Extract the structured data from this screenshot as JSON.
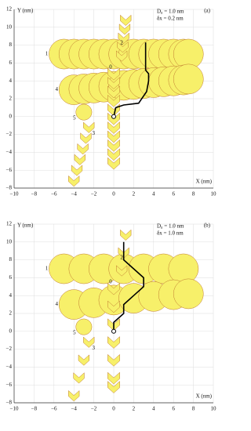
{
  "chart_data": [
    {
      "type": "line",
      "panel": "(a)",
      "annotations": [
        "D₀ = 1.0 nm",
        "δx = 0.2 nm"
      ],
      "xlabel": "X (nm)",
      "ylabel": "Y (nm)",
      "xlim": [
        -10,
        10
      ],
      "ylim": [
        -8,
        12
      ],
      "xticks": [
        {
          "value": -10,
          "label": "−10"
        },
        {
          "value": -8,
          "label": "−8"
        },
        {
          "value": -6,
          "label": "−6"
        },
        {
          "value": -4,
          "label": "−4"
        },
        {
          "value": -2,
          "label": "−2"
        },
        0,
        2,
        4,
        6,
        8,
        10
      ],
      "yticks": [
        {
          "value": -8,
          "label": "−8"
        },
        {
          "value": -6,
          "label": "−6"
        },
        {
          "value": -4,
          "label": "−4"
        },
        {
          "value": -2,
          "label": "−2"
        },
        0,
        2,
        4,
        6,
        8,
        10,
        12
      ],
      "grid": true,
      "branches": [
        {
          "label": "1",
          "shape": "circle",
          "size": 1.5,
          "color": "#f7f06a",
          "x": [
            -5,
            -4,
            -3,
            -2,
            -1,
            0,
            1,
            2,
            3,
            4,
            5,
            6,
            7,
            7.5
          ],
          "y": [
            7,
            7,
            7,
            7,
            7,
            7,
            7,
            7,
            7,
            7,
            7,
            7,
            7,
            7
          ]
        },
        {
          "label": "4",
          "shape": "circle",
          "size": 1.5,
          "color": "#f7f06a",
          "x": [
            -4,
            -3,
            -2,
            -1,
            0,
            1,
            2,
            3,
            4,
            5,
            6,
            7,
            7.5
          ],
          "y": [
            3,
            3.1,
            3.2,
            3.3,
            3.4,
            3.5,
            3.6,
            3.7,
            3.8,
            3.9,
            4,
            4.1,
            4.2
          ]
        },
        {
          "label": "5",
          "shape": "circle",
          "size": 0.8,
          "color": "#f7f06a",
          "x": [
            -3
          ],
          "y": [
            0.5
          ]
        },
        {
          "label": "3",
          "shape": "chevron",
          "size": 0.9,
          "color": "#f7f06a",
          "x": [
            -2.5,
            -2.8,
            -3.1,
            -3.4,
            -3.7,
            -4
          ],
          "y": [
            -1,
            -2.2,
            -3.4,
            -4.6,
            -5.8,
            -7
          ]
        },
        {
          "label": "2",
          "shape": "chevron",
          "size": 0.9,
          "color": "#f7f06a",
          "x": [
            0.8,
            0.9,
            1,
            1.1,
            1.2
          ],
          "y": [
            7,
            8,
            9,
            10,
            11
          ]
        },
        {
          "label": "0",
          "shape": "chevron",
          "size": 1,
          "color": "#f7f06a",
          "x": [
            0,
            0,
            0,
            0,
            0,
            0,
            0,
            0,
            0,
            0,
            0
          ],
          "y": [
            5,
            4,
            3,
            2,
            1,
            0,
            -1,
            -2,
            -3,
            -4,
            -5
          ]
        }
      ],
      "series": [
        {
          "color": "#000000",
          "x": [
            0,
            0.2,
            1,
            2.5,
            3.3,
            3.5,
            3.5,
            3.2,
            3.2
          ],
          "y": [
            0,
            1,
            1.3,
            1.5,
            2.8,
            4,
            4.8,
            5.2,
            8.3
          ]
        }
      ]
    },
    {
      "type": "line",
      "panel": "(b)",
      "annotations": [
        "D₀ = 1.0 nm",
        "δx = 1.0 nm"
      ],
      "xlabel": "X (nm)",
      "ylabel": "Y (nm)",
      "xlim": [
        -10,
        10
      ],
      "ylim": [
        -8,
        12
      ],
      "xticks": [
        {
          "value": -10,
          "label": "−10"
        },
        {
          "value": -8,
          "label": "−8"
        },
        {
          "value": -6,
          "label": "−6"
        },
        {
          "value": -4,
          "label": "−4"
        },
        {
          "value": -2,
          "label": "−2"
        },
        0,
        2,
        4,
        6,
        8,
        10
      ],
      "yticks": [
        {
          "value": -8,
          "label": "−8"
        },
        {
          "value": -6,
          "label": "−6"
        },
        {
          "value": -4,
          "label": "−4"
        },
        {
          "value": -2,
          "label": "−2"
        },
        0,
        2,
        4,
        6,
        8,
        10,
        12
      ],
      "grid": true,
      "branches": [
        {
          "label": "1",
          "shape": "circle",
          "size": 1.5,
          "color": "#f7f06a",
          "x": [
            -5,
            -3,
            -1,
            1,
            3,
            5,
            7
          ],
          "y": [
            7,
            7,
            7,
            7,
            7,
            7,
            7
          ]
        },
        {
          "label": "4",
          "shape": "circle",
          "size": 1.5,
          "color": "#f7f06a",
          "x": [
            -4,
            -2,
            0,
            2,
            4,
            6,
            7.5
          ],
          "y": [
            3,
            3.2,
            3.5,
            3.7,
            3.9,
            4.1,
            4.2
          ]
        },
        {
          "label": "5",
          "shape": "circle",
          "size": 0.8,
          "color": "#f7f06a",
          "x": [
            -3
          ],
          "y": [
            0.5
          ]
        },
        {
          "label": "3",
          "shape": "chevron",
          "size": 0.9,
          "color": "#f7f06a",
          "x": [
            -2.5,
            -3,
            -3.5,
            -4
          ],
          "y": [
            -1,
            -3,
            -5,
            -7
          ]
        },
        {
          "label": "2",
          "shape": "chevron",
          "size": 0.9,
          "color": "#f7f06a",
          "x": [
            0.8,
            1,
            1.2
          ],
          "y": [
            7,
            9,
            11
          ]
        },
        {
          "label": "0",
          "shape": "chevron",
          "size": 1,
          "color": "#f7f06a",
          "x": [
            0,
            0,
            0,
            0,
            0,
            0,
            0
          ],
          "y": [
            5,
            3,
            1,
            -1,
            -3,
            -5,
            -6
          ]
        }
      ],
      "series": [
        {
          "color": "#000000",
          "x": [
            0,
            0,
            1,
            1,
            2,
            3,
            3,
            2,
            1,
            1
          ],
          "y": [
            0,
            1,
            2,
            3,
            4,
            5,
            6,
            7,
            8,
            10
          ]
        }
      ]
    }
  ]
}
